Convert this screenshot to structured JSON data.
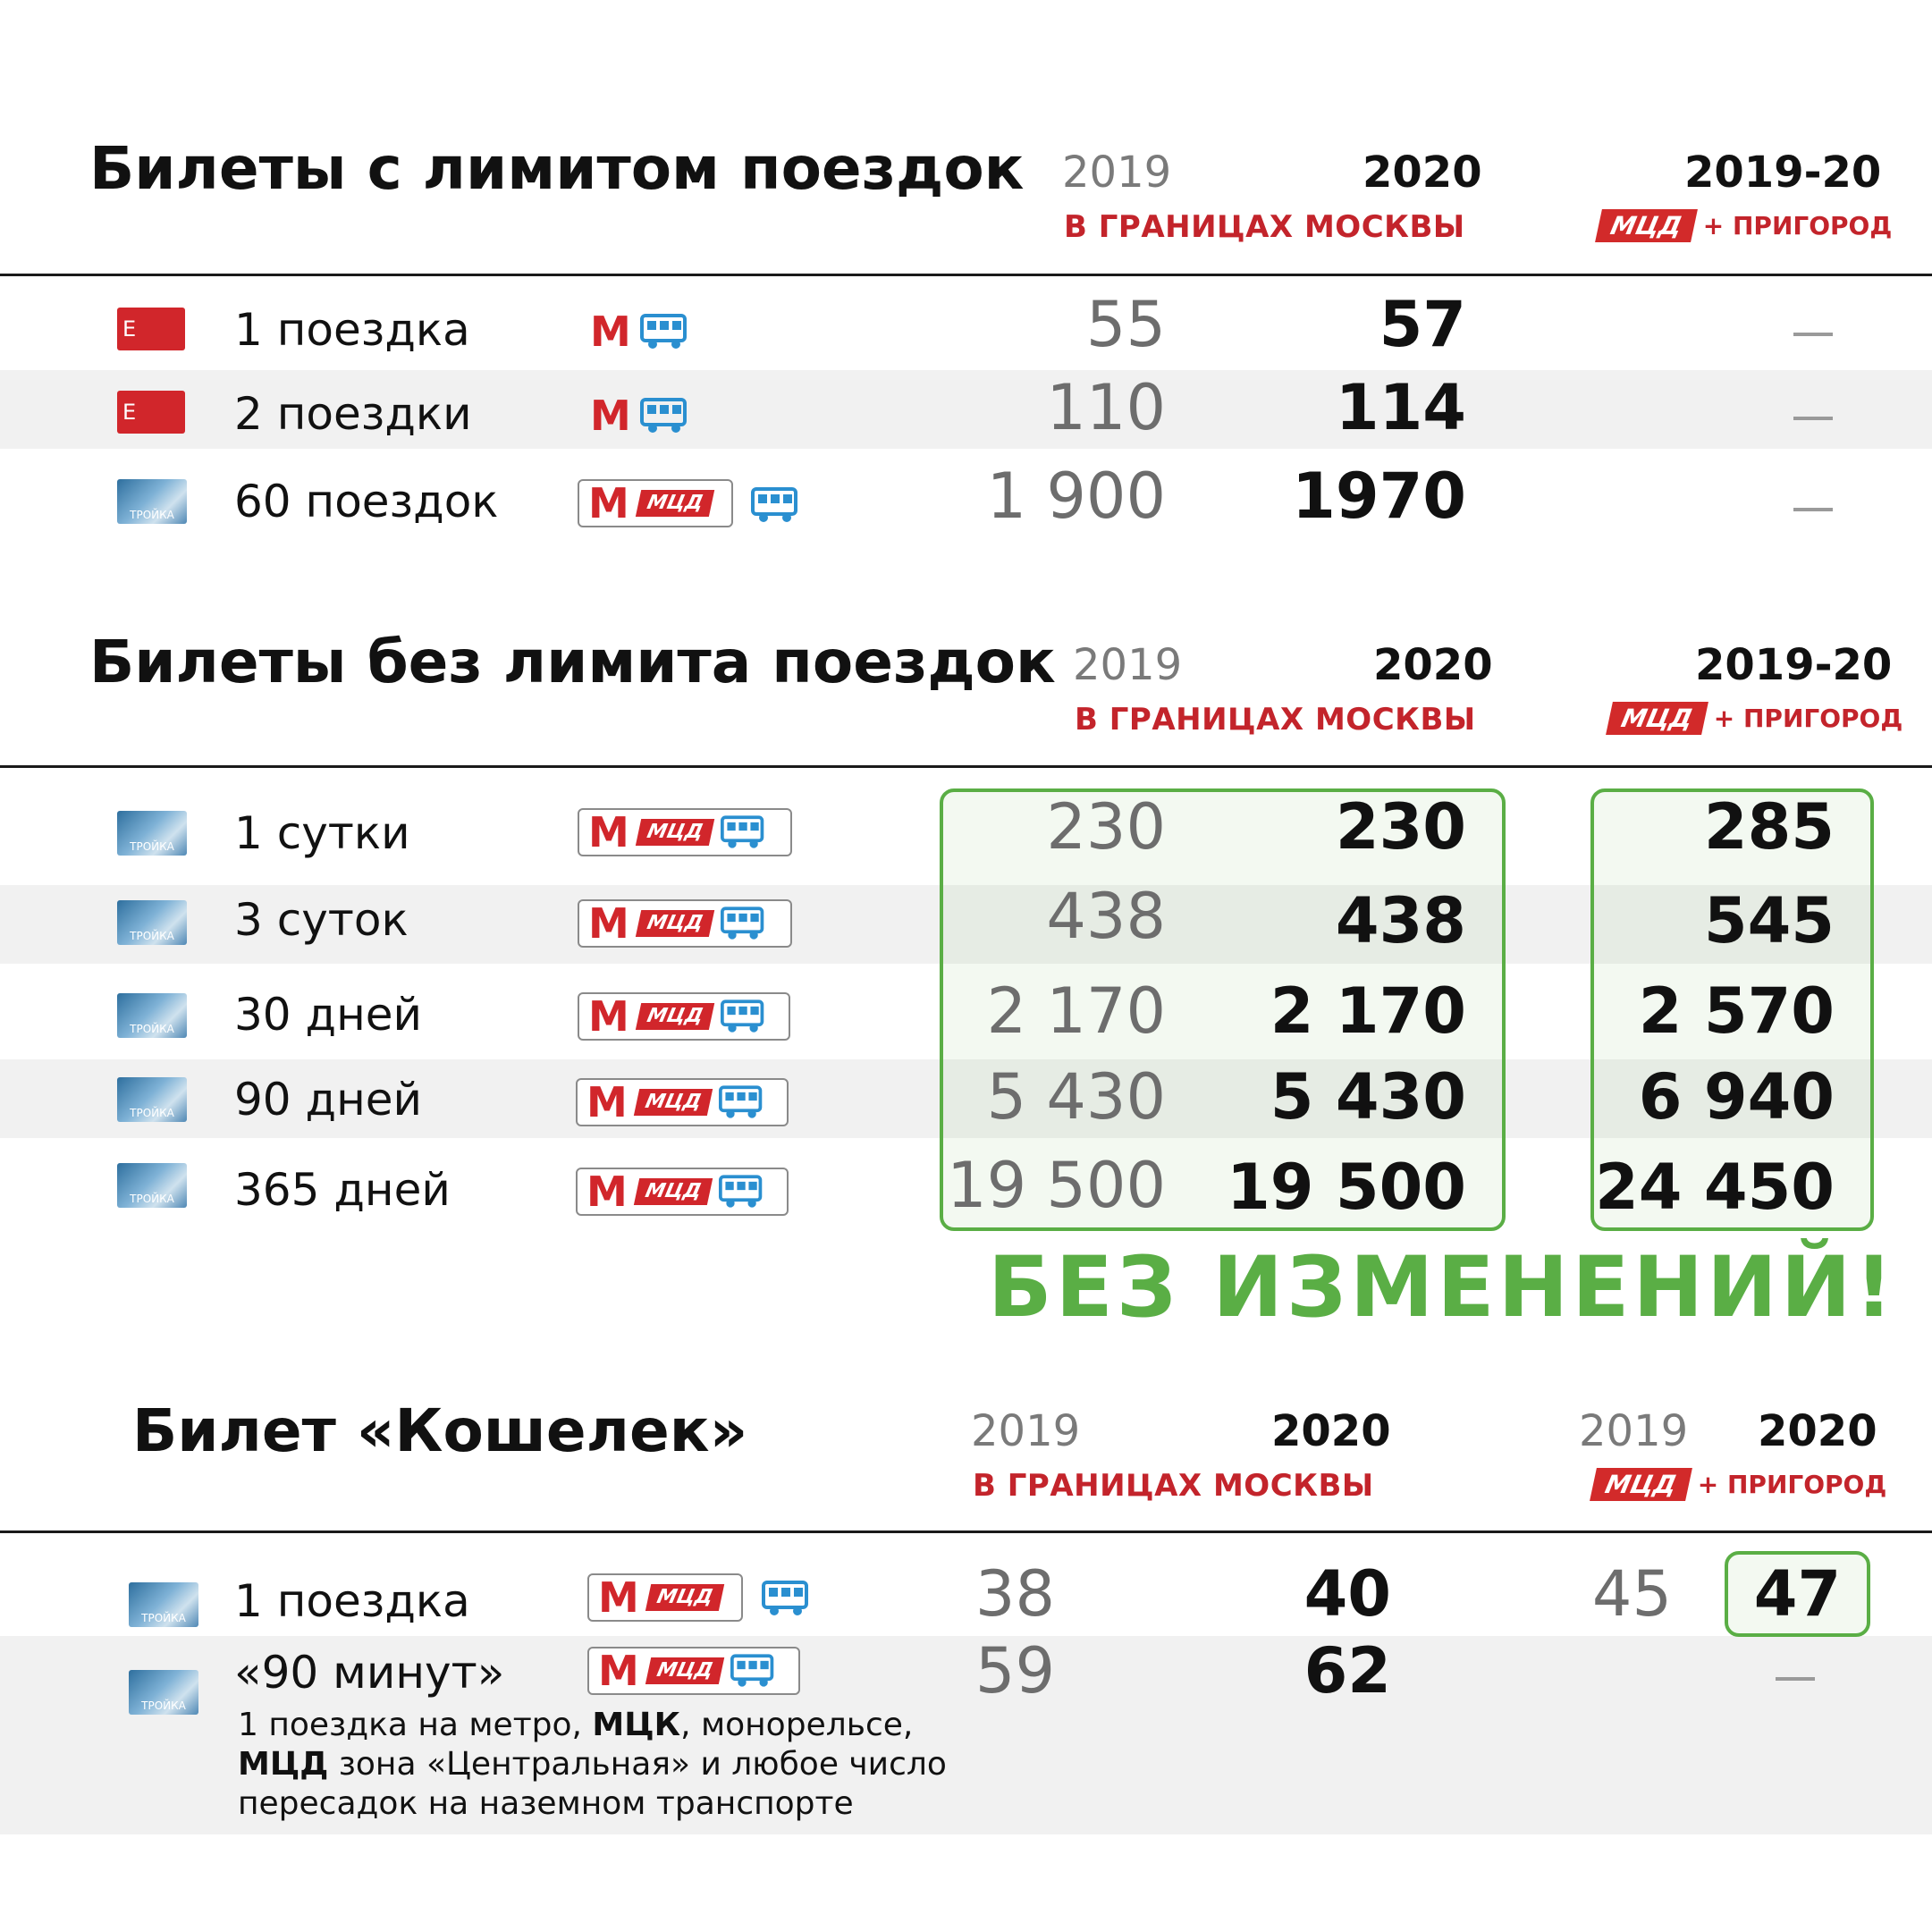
{
  "colors": {
    "red": "#d1262b",
    "green": "#5aae45",
    "band": "#f1f1f1"
  },
  "section1": {
    "title": "Билеты с лимитом поездок",
    "year_old": "2019",
    "year_new": "2020",
    "sub_moscow": "В ГРАНИЦАХ МОСКВЫ",
    "year_range": "2019-20",
    "mcd": "МЦД",
    "suburbs": "+ ПРИГОРОД",
    "rows": [
      {
        "card": "Е",
        "label": "1 поездка",
        "v2019": "55",
        "v2020": "57",
        "suburb": "—"
      },
      {
        "card": "Е",
        "label": "2 поездки",
        "v2019": "110",
        "v2020": "114",
        "suburb": "—"
      },
      {
        "card": "ТРОЙКА",
        "label": "60 поездок",
        "mcd": "МЦД",
        "v2019": "1 900",
        "v2020": "1970",
        "suburb": "—"
      }
    ]
  },
  "section2": {
    "title": "Билеты без лимита поездок",
    "year_old": "2019",
    "year_new": "2020",
    "sub_moscow": "В ГРАНИЦАХ МОСКВЫ",
    "year_range": "2019-20",
    "mcd": "МЦД",
    "suburbs": "+ ПРИГОРОД",
    "rows": [
      {
        "label": "1 сутки",
        "mcd": "МЦД",
        "v2019": "230",
        "v2020": "230",
        "suburb": "285"
      },
      {
        "label": "3 суток",
        "mcd": "МЦД",
        "v2019": "438",
        "v2020": "438",
        "suburb": "545"
      },
      {
        "label": "30 дней",
        "mcd": "МЦД",
        "v2019": "2 170",
        "v2020": "2 170",
        "suburb": "2 570"
      },
      {
        "label": "90 дней",
        "mcd": "МЦД",
        "v2019": "5 430",
        "v2020": "5 430",
        "suburb": "6 940"
      },
      {
        "label": "365 дней",
        "mcd": "МЦД",
        "v2019": "19 500",
        "v2020": "19 500",
        "suburb": "24 450"
      }
    ],
    "no_change": "БЕЗ ИЗМЕНЕНИЙ!"
  },
  "section3": {
    "title": "Билет «Кошелек»",
    "year_old": "2019",
    "year_new": "2020",
    "sub_moscow": "В ГРАНИЦАХ МОСКВЫ",
    "sub_year_old": "2019",
    "sub_year_new": "2020",
    "mcd": "МЦД",
    "suburbs": "+ ПРИГОРОД",
    "rows": [
      {
        "label": "1 поездка",
        "mcd": "МЦД",
        "v2019": "38",
        "v2020": "40",
        "s2019": "45",
        "s2020": "47"
      },
      {
        "label": "«90 минут»",
        "mcd": "МЦД",
        "v2019": "59",
        "v2020": "62",
        "suburb": "—"
      }
    ],
    "note_1": "1 поездка на метро, ",
    "note_2": "МЦК",
    "note_3": ", монорельсе,",
    "note_4": "МЦД",
    "note_5": " зона «Центральная» и любое число",
    "note_6": "пересадок на наземном транспорте"
  },
  "icons": {
    "metro": "metro-m-icon",
    "bus": "bus-icon",
    "card_e": "single-ticket-icon",
    "card_troika": "troika-card-icon"
  },
  "metro_letter": "М",
  "troika_text": "ТРОЙКА"
}
